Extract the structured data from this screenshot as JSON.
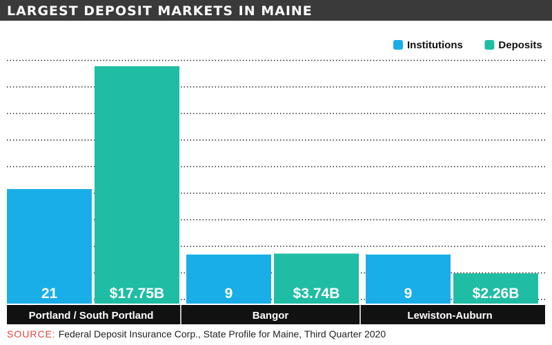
{
  "header": {
    "title": "LARGEST DEPOSIT MARKETS IN MAINE"
  },
  "chart_data": {
    "type": "bar",
    "title": "LARGEST DEPOSIT MARKETS IN MAINE",
    "categories": [
      "Portland / South Portland",
      "Bangor",
      "Lewiston-Auburn"
    ],
    "series": [
      {
        "name": "Institutions",
        "values": [
          21,
          9,
          9
        ],
        "labels": [
          "21",
          "9",
          "9"
        ],
        "color": "#1aaee8"
      },
      {
        "name": "Deposits",
        "values": [
          17.75,
          3.74,
          2.26
        ],
        "labels": [
          "$17.75B",
          "$3.74B",
          "$2.26B"
        ],
        "color": "#1fbda4"
      }
    ],
    "legend_position": "top-right",
    "grid": true
  },
  "footer": {
    "source_label": "SOURCE:",
    "source_text": "Federal Deposit Insurance Corp., State Profile for Maine, Third Quarter 2020"
  },
  "colors": {
    "title_bg": "#3a3a3a",
    "category_bar_bg": "#111111",
    "source_label": "#e0453a"
  }
}
